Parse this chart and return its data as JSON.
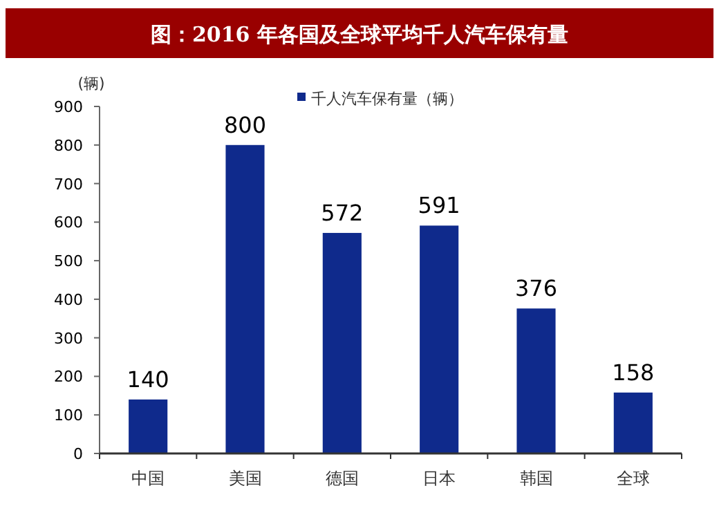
{
  "chart_data": {
    "type": "bar",
    "title": "图：2016 年各国及全球平均千人汽车保有量",
    "ylabel": "(辆)",
    "categories": [
      "中国",
      "美国",
      "德国",
      "日本",
      "韩国",
      "全球"
    ],
    "series": [
      {
        "name": "千人汽车保有量（辆）",
        "color": "#0f2a8c",
        "values": [
          140,
          800,
          572,
          591,
          376,
          158
        ]
      }
    ],
    "ylim": [
      0,
      900
    ],
    "yticks": [
      0,
      100,
      200,
      300,
      400,
      500,
      600,
      700,
      800,
      900
    ],
    "data_labels": true,
    "legend": "top",
    "grid": false
  }
}
